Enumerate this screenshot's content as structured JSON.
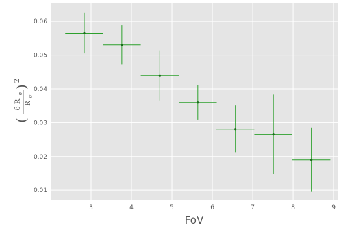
{
  "chart_data": {
    "type": "scatter",
    "title": "",
    "xlabel": "FoV",
    "ylabel": {
      "outer_open": "(",
      "numerator": "δ R",
      "numerator_sub": "σ",
      "denominator": "R",
      "denominator_sub": "σ",
      "outer_close": ")",
      "power": "2"
    },
    "xlim": [
      2.0,
      9.1
    ],
    "ylim": [
      0.007,
      0.0655
    ],
    "xticks": [
      3,
      4,
      5,
      6,
      7,
      8,
      9
    ],
    "xtick_labels": [
      "3",
      "4",
      "5",
      "6",
      "7",
      "8",
      "9"
    ],
    "yticks": [
      0.01,
      0.02,
      0.03,
      0.04,
      0.05,
      0.06
    ],
    "ytick_labels": [
      "0.01",
      "0.02",
      "0.03",
      "0.04",
      "0.05",
      "0.06"
    ],
    "grid": true,
    "style": "ggplot-like gray background with white grid",
    "colors": {
      "background": "#e5e5e5",
      "grid": "#ffffff",
      "series": "#2ca02c",
      "text": "#555555"
    },
    "series": [
      {
        "points": [
          {
            "x": 2.83,
            "y": 0.0565,
            "x_err": 0.47,
            "y_err": 0.006
          },
          {
            "x": 3.76,
            "y": 0.053,
            "x_err": 0.47,
            "y_err": 0.0058
          },
          {
            "x": 4.7,
            "y": 0.044,
            "x_err": 0.47,
            "y_err": 0.0074
          },
          {
            "x": 5.64,
            "y": 0.036,
            "x_err": 0.47,
            "y_err": 0.0051
          },
          {
            "x": 6.57,
            "y": 0.0281,
            "x_err": 0.47,
            "y_err": 0.007
          },
          {
            "x": 7.51,
            "y": 0.0265,
            "x_err": 0.47,
            "y_err": 0.0118
          },
          {
            "x": 8.45,
            "y": 0.019,
            "x_err": 0.47,
            "y_err": 0.0095
          }
        ]
      }
    ]
  }
}
